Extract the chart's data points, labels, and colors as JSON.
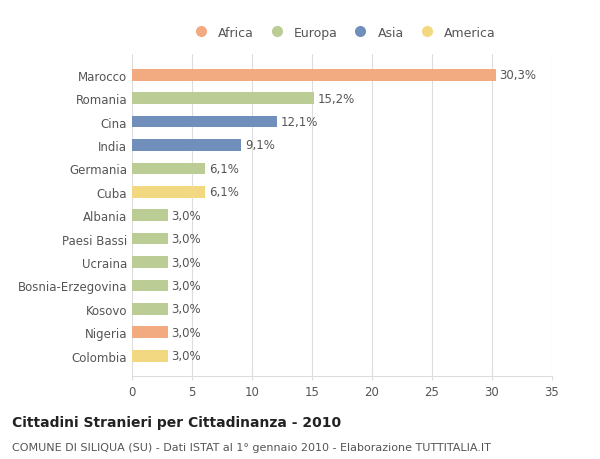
{
  "categories": [
    "Marocco",
    "Romania",
    "Cina",
    "India",
    "Germania",
    "Cuba",
    "Albania",
    "Paesi Bassi",
    "Ucraina",
    "Bosnia-Erzegovina",
    "Kosovo",
    "Nigeria",
    "Colombia"
  ],
  "values": [
    30.3,
    15.2,
    12.1,
    9.1,
    6.1,
    6.1,
    3.0,
    3.0,
    3.0,
    3.0,
    3.0,
    3.0,
    3.0
  ],
  "labels": [
    "30,3%",
    "15,2%",
    "12,1%",
    "9,1%",
    "6,1%",
    "6,1%",
    "3,0%",
    "3,0%",
    "3,0%",
    "3,0%",
    "3,0%",
    "3,0%",
    "3,0%"
  ],
  "continents": [
    "Africa",
    "Europa",
    "Asia",
    "Asia",
    "Europa",
    "America",
    "Europa",
    "Europa",
    "Europa",
    "Europa",
    "Europa",
    "Africa",
    "America"
  ],
  "colors": {
    "Africa": "#F2AA80",
    "Europa": "#BBCC94",
    "Asia": "#7090BB",
    "America": "#F2D880"
  },
  "legend_order": [
    "Africa",
    "Europa",
    "Asia",
    "America"
  ],
  "title": "Cittadini Stranieri per Cittadinanza - 2010",
  "subtitle": "COMUNE DI SILIQUA (SU) - Dati ISTAT al 1° gennaio 2010 - Elaborazione TUTTITALIA.IT",
  "xlim": [
    0,
    35
  ],
  "xticks": [
    0,
    5,
    10,
    15,
    20,
    25,
    30,
    35
  ],
  "background_color": "#ffffff",
  "plot_bg_color": "#f8f8f8",
  "grid_color": "#dddddd",
  "bar_height": 0.5,
  "title_fontsize": 10,
  "subtitle_fontsize": 8,
  "tick_fontsize": 8.5,
  "label_fontsize": 8.5,
  "text_color": "#555555"
}
